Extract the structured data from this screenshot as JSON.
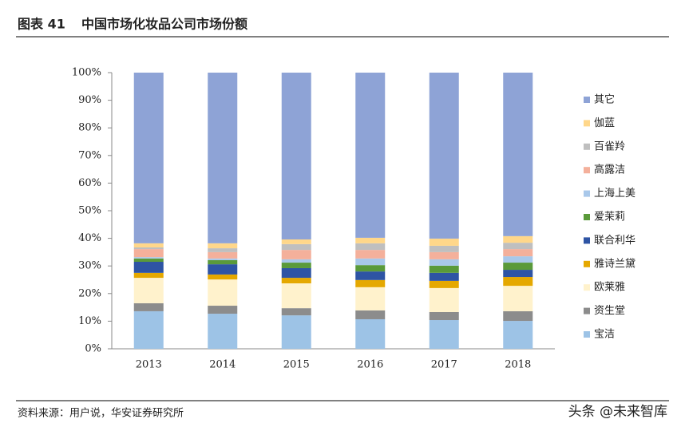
{
  "header": {
    "number": "图表 41",
    "title": "中国市场化妆品公司市场份额"
  },
  "chart_data": {
    "type": "stacked_bar",
    "categories": [
      "2013",
      "2014",
      "2015",
      "2016",
      "2017",
      "2018"
    ],
    "series": [
      {
        "name": "宝洁",
        "color": "#9dc3e6",
        "values": [
          13.6,
          12.7,
          12.1,
          10.7,
          10.4,
          10.1
        ]
      },
      {
        "name": "资生堂",
        "color": "#8c8c8c",
        "values": [
          2.9,
          2.9,
          2.6,
          3.2,
          2.9,
          3.5
        ]
      },
      {
        "name": "欧莱雅",
        "color": "#fff2cc",
        "values": [
          9.2,
          9.5,
          9.0,
          8.4,
          8.7,
          9.2
        ]
      },
      {
        "name": "雅诗兰黛",
        "color": "#e5a800",
        "values": [
          1.8,
          1.8,
          2.0,
          2.6,
          2.6,
          3.2
        ]
      },
      {
        "name": "联合利华",
        "color": "#2e54a4",
        "values": [
          4.0,
          3.7,
          3.5,
          3.1,
          2.9,
          2.6
        ]
      },
      {
        "name": "爱茉莉",
        "color": "#5a9a3a",
        "values": [
          1.2,
          1.5,
          2.0,
          2.3,
          2.6,
          2.6
        ]
      },
      {
        "name": "上海上美",
        "color": "#a9c8ea",
        "values": [
          0.5,
          0.6,
          1.2,
          2.4,
          2.3,
          2.3
        ]
      },
      {
        "name": "高露洁",
        "color": "#f4b09b",
        "values": [
          2.9,
          2.3,
          3.4,
          3.1,
          2.6,
          2.6
        ]
      },
      {
        "name": "百雀羚",
        "color": "#bfbfbf",
        "values": [
          0.6,
          1.4,
          2.1,
          2.4,
          2.3,
          2.3
        ]
      },
      {
        "name": "伽蓝",
        "color": "#ffd78a",
        "values": [
          1.5,
          1.8,
          1.7,
          2.0,
          2.6,
          2.4
        ]
      },
      {
        "name": "其它",
        "color": "#8ea3d6",
        "values": [
          61.8,
          61.8,
          60.4,
          59.8,
          60.1,
          59.2
        ]
      }
    ],
    "ylim": [
      0,
      100
    ],
    "yticks": [
      {
        "value": 0,
        "label": "0%"
      },
      {
        "value": 10,
        "label": "10%"
      },
      {
        "value": 20,
        "label": "20%"
      },
      {
        "value": 30,
        "label": "30%"
      },
      {
        "value": 40,
        "label": "40%"
      },
      {
        "value": 50,
        "label": "50%"
      },
      {
        "value": 60,
        "label": "60%"
      },
      {
        "value": 70,
        "label": "70%"
      },
      {
        "value": 80,
        "label": "80%"
      },
      {
        "value": 90,
        "label": "90%"
      },
      {
        "value": 100,
        "label": "100%"
      }
    ],
    "legend": "right"
  },
  "footer": {
    "source": "资料来源：用户说，华安证券研究所",
    "watermark": "头条 @未来智库"
  }
}
